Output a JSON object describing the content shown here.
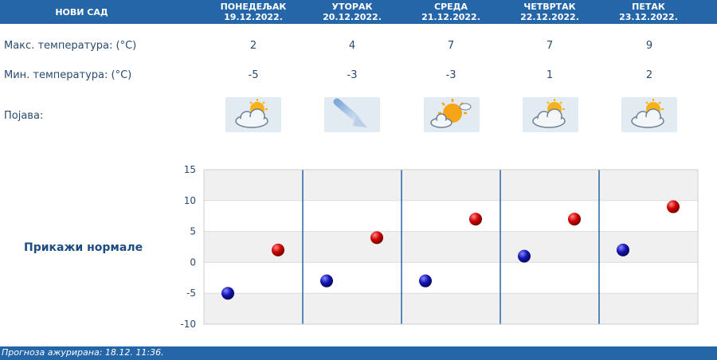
{
  "header": {
    "city": "НОВИ САД",
    "days": [
      {
        "name": "ПОНЕДЕЉАК",
        "date": "19.12.2022."
      },
      {
        "name": "УТОРАК",
        "date": "20.12.2022."
      },
      {
        "name": "СРЕДА",
        "date": "21.12.2022."
      },
      {
        "name": "ЧЕТВРТАК",
        "date": "22.12.2022."
      },
      {
        "name": "ПЕТАК",
        "date": "23.12.2022."
      }
    ]
  },
  "rows": {
    "max_label": "Макс. температура: (°C)",
    "min_label": "Мин. температура: (°C)",
    "phen_label": "Појава:"
  },
  "max_temps": [
    "2",
    "4",
    "7",
    "7",
    "9"
  ],
  "min_temps": [
    "-5",
    "-3",
    "-3",
    "1",
    "2"
  ],
  "icons": [
    "partly-cloudy-icon",
    "wind-arrow-icon",
    "sun-cloud-icon",
    "partly-cloudy-icon",
    "partly-cloudy-icon"
  ],
  "normals_link": "Прикажи нормале",
  "footer": "Прогноза ажурирана:  18.12. 11:36.",
  "chart_data": {
    "type": "scatter",
    "categories": [
      "19.12.2022.",
      "20.12.2022.",
      "21.12.2022.",
      "22.12.2022.",
      "23.12.2022."
    ],
    "series": [
      {
        "values": [
          -5,
          -3,
          -3,
          1,
          2
        ],
        "color": "#1a1aa8"
      },
      {
        "values": [
          2,
          4,
          7,
          7,
          9
        ],
        "color": "#c80000"
      }
    ],
    "ylim": [
      -10,
      15
    ],
    "yticks": [
      "15",
      "10",
      "5",
      "0",
      "-5",
      "-10"
    ],
    "grid": true
  }
}
